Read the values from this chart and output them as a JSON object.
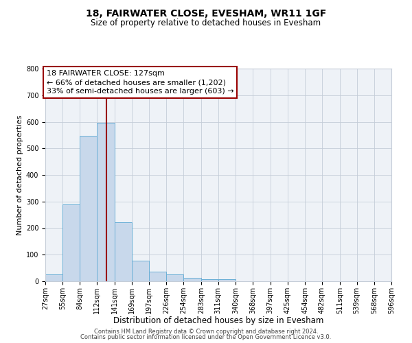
{
  "title": "18, FAIRWATER CLOSE, EVESHAM, WR11 1GF",
  "subtitle": "Size of property relative to detached houses in Evesham",
  "xlabel": "Distribution of detached houses by size in Evesham",
  "ylabel": "Number of detached properties",
  "bar_color": "#c8d8eb",
  "bar_edge_color": "#6aafd6",
  "background_color": "#eef2f7",
  "grid_color": "#c5cdd8",
  "property_line_x": 127,
  "property_line_color": "#990000",
  "bin_edges": [
    27,
    55,
    84,
    112,
    141,
    169,
    197,
    226,
    254,
    283,
    311,
    340,
    368,
    397,
    425,
    454,
    482,
    511,
    539,
    568,
    596
  ],
  "bin_labels": [
    "27sqm",
    "55sqm",
    "84sqm",
    "112sqm",
    "141sqm",
    "169sqm",
    "197sqm",
    "226sqm",
    "254sqm",
    "283sqm",
    "311sqm",
    "340sqm",
    "368sqm",
    "397sqm",
    "425sqm",
    "454sqm",
    "482sqm",
    "511sqm",
    "539sqm",
    "568sqm",
    "596sqm"
  ],
  "bar_heights": [
    25,
    290,
    547,
    597,
    222,
    78,
    36,
    25,
    12,
    8,
    7,
    0,
    0,
    0,
    0,
    0,
    0,
    0,
    0,
    0
  ],
  "annotation_line1": "18 FAIRWATER CLOSE: 127sqm",
  "annotation_line2": "← 66% of detached houses are smaller (1,202)",
  "annotation_line3": "33% of semi-detached houses are larger (603) →",
  "ylim": [
    0,
    800
  ],
  "yticks": [
    0,
    100,
    200,
    300,
    400,
    500,
    600,
    700,
    800
  ],
  "footer_line1": "Contains HM Land Registry data © Crown copyright and database right 2024.",
  "footer_line2": "Contains public sector information licensed under the Open Government Licence v3.0.",
  "title_fontsize": 10,
  "subtitle_fontsize": 8.5,
  "xlabel_fontsize": 8.5,
  "ylabel_fontsize": 8,
  "tick_fontsize": 7,
  "annotation_fontsize": 8,
  "footer_fontsize": 6
}
